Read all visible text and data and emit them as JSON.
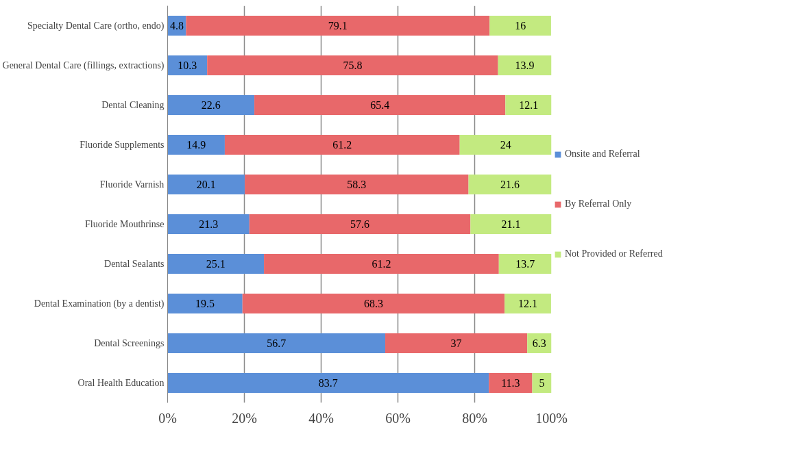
{
  "chart_data": {
    "type": "bar",
    "orientation": "horizontal",
    "stacked": true,
    "data_labels": true,
    "grid": "x",
    "legend": "right",
    "categories": [
      "Specialty Dental Care (ortho, endo)",
      "General Dental Care (fillings, extractions)",
      "Dental Cleaning",
      "Fluoride Supplements",
      "Fluoride Varnish",
      "Fluoride Mouthrinse",
      "Dental Sealants",
      "Dental Examination (by a dentist)",
      "Dental Screenings",
      "Oral Health Education"
    ],
    "series": [
      {
        "name": "Onsite and Referral",
        "color": "#5b8fd8",
        "values": [
          4.8,
          10.3,
          22.6,
          14.9,
          20.1,
          21.3,
          25.1,
          19.5,
          56.7,
          83.7
        ]
      },
      {
        "name": "By Referral Only",
        "color": "#e8686a",
        "values": [
          79.1,
          75.8,
          65.4,
          61.2,
          58.3,
          57.6,
          61.2,
          68.3,
          37,
          11.3
        ]
      },
      {
        "name": "Not Provided or Referred",
        "color": "#c3ea80",
        "values": [
          16,
          13.9,
          12.1,
          24,
          21.6,
          21.1,
          13.7,
          12.1,
          6.3,
          5
        ]
      }
    ],
    "xlim": [
      0,
      100
    ],
    "xticks": [
      {
        "value": 0,
        "label": "0%"
      },
      {
        "value": 20,
        "label": "20%"
      },
      {
        "value": 40,
        "label": "40%"
      },
      {
        "value": 60,
        "label": "60%"
      },
      {
        "value": 80,
        "label": "80%"
      },
      {
        "value": 100,
        "label": "100%"
      }
    ]
  }
}
